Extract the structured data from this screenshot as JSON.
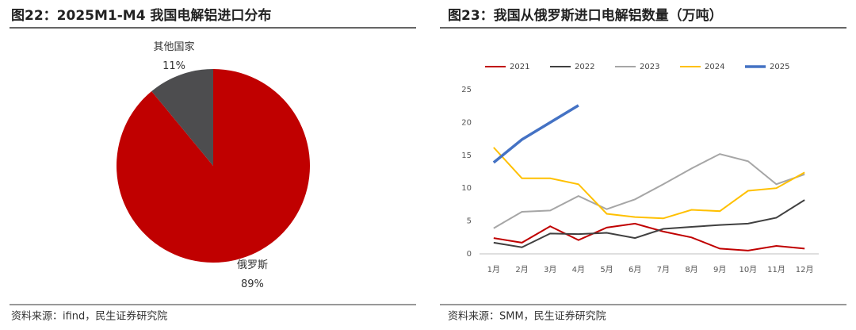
{
  "chart_data": [
    {
      "type": "pie",
      "title": "图22：2025M1-M4 我国电解铝进口分布",
      "source": "资料来源：ifind，民生证券研究院",
      "categories": [
        "俄罗斯",
        "其他国家"
      ],
      "values": [
        89,
        11
      ],
      "value_labels": [
        "89%",
        "11%"
      ],
      "colors": [
        "#c00000",
        "#4d4d4f"
      ]
    },
    {
      "type": "line",
      "title": "图23：我国从俄罗斯进口电解铝数量（万吨）",
      "source": "资料来源：SMM，民生证券研究院",
      "categories": [
        "1月",
        "2月",
        "3月",
        "4月",
        "5月",
        "6月",
        "7月",
        "8月",
        "9月",
        "10月",
        "11月",
        "12月"
      ],
      "ylim": [
        0,
        25
      ],
      "yticks": [
        0,
        5,
        10,
        15,
        20,
        25
      ],
      "grid": false,
      "legend": "top",
      "series": [
        {
          "name": "2021",
          "color": "#c00000",
          "values": [
            2.4,
            1.7,
            4.2,
            2.1,
            4.0,
            4.6,
            3.4,
            2.5,
            0.8,
            0.5,
            1.2,
            0.8
          ]
        },
        {
          "name": "2022",
          "color": "#404040",
          "values": [
            1.7,
            1.0,
            3.1,
            3.0,
            3.2,
            2.4,
            3.8,
            4.1,
            4.4,
            4.6,
            5.5,
            8.2
          ]
        },
        {
          "name": "2023",
          "color": "#a6a6a6",
          "values": [
            3.9,
            6.4,
            6.6,
            8.8,
            6.8,
            8.3,
            10.6,
            13.0,
            15.2,
            14.1,
            10.6,
            12.1
          ]
        },
        {
          "name": "2024",
          "color": "#ffc000",
          "values": [
            16.2,
            11.5,
            11.5,
            10.6,
            6.1,
            5.6,
            5.4,
            6.7,
            6.5,
            9.6,
            10.0,
            12.4
          ]
        },
        {
          "name": "2025",
          "color": "#4472c4",
          "values": [
            13.9,
            17.4,
            20.0,
            22.6,
            null,
            null,
            null,
            null,
            null,
            null,
            null,
            null
          ]
        }
      ]
    }
  ]
}
